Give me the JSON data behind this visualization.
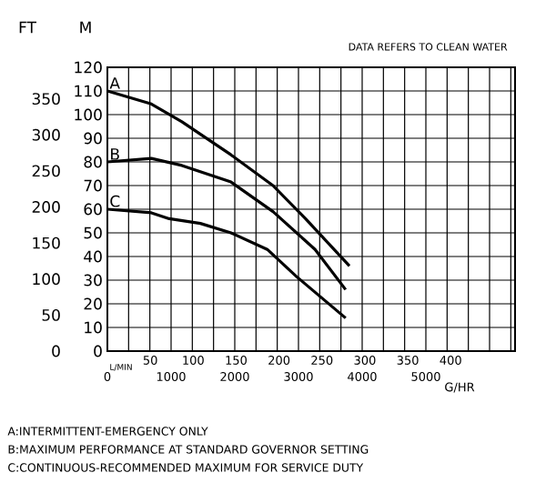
{
  "chart_data": {
    "type": "line",
    "title": "DATA REFERS TO CLEAN WATER",
    "xlabel": "G/HR",
    "x2label": "L/MIN",
    "ylabel": "M",
    "y2label": "FT",
    "xlim": [
      0,
      6400
    ],
    "xticks": [
      0,
      1000,
      2000,
      3000,
      4000,
      5000
    ],
    "x2lim": [
      0,
      475
    ],
    "x2ticks": [
      50,
      100,
      150,
      200,
      250,
      300,
      350,
      400
    ],
    "ylim": [
      0,
      120
    ],
    "yticks": [
      0,
      10,
      20,
      30,
      40,
      50,
      60,
      70,
      80,
      90,
      100,
      110,
      120
    ],
    "y2lim": [
      0,
      393.7
    ],
    "y2ticks": [
      0,
      50,
      100,
      150,
      200,
      250,
      300,
      350
    ],
    "grid": true,
    "marker": "none",
    "line_style": "solid",
    "series": [
      {
        "name": "A",
        "color": "#000000",
        "x": [
          0,
          690,
          1170,
          1940,
          2600,
          3110,
          3800
        ],
        "values": [
          110,
          104.5,
          97,
          83,
          70,
          56,
          36
        ]
      },
      {
        "name": "B",
        "color": "#000000",
        "x": [
          0,
          690,
          1170,
          1940,
          2600,
          3260,
          3740
        ],
        "values": [
          80,
          81.5,
          78.5,
          71.5,
          59,
          43,
          26
        ]
      },
      {
        "name": "C",
        "color": "#000000",
        "x": [
          0,
          690,
          970,
          1460,
          1940,
          2510,
          2970,
          3740
        ],
        "values": [
          60,
          58.5,
          56,
          54,
          50,
          43,
          31.5,
          14
        ]
      }
    ],
    "annotations": [
      "A:INTERMITTENT-EMERGENCY ONLY",
      "B:MAXIMUM PERFORMANCE AT STANDARD GOVERNOR SETTING",
      "C:CONTINUOUS-RECOMMENDED MAXIMUM FOR SERVICE DUTY"
    ]
  }
}
